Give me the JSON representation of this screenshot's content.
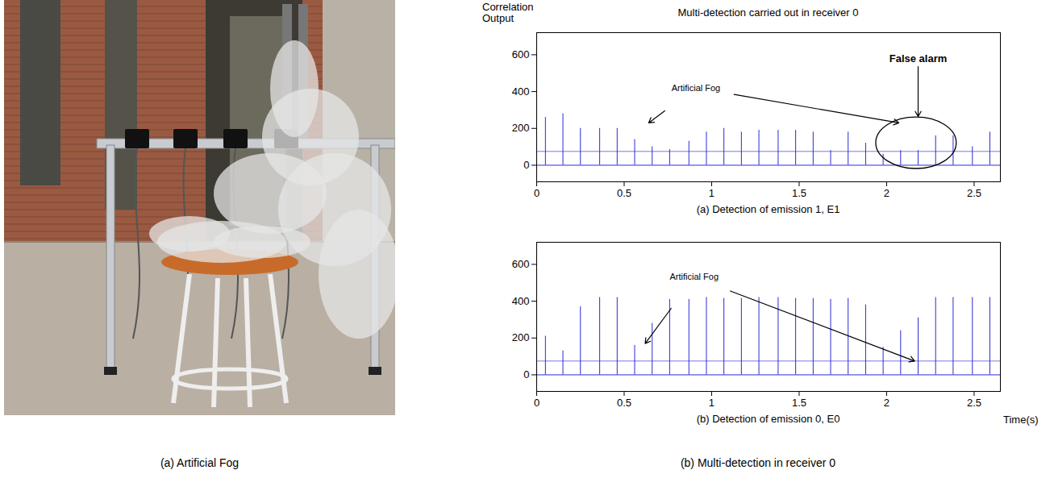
{
  "photo": {
    "caption": "(a) Artificial Fog"
  },
  "caption": "(b) Multi-detection in receiver 0",
  "chart_data": [
    {
      "type": "stem",
      "title": "Multi-detection carried out in receiver 0",
      "y_label": "Correlation Output",
      "x_label": "(a) Detection of emission 1, E1",
      "x": [
        0.05,
        0.15,
        0.25,
        0.36,
        0.46,
        0.56,
        0.66,
        0.76,
        0.87,
        0.97,
        1.07,
        1.17,
        1.27,
        1.38,
        1.48,
        1.58,
        1.68,
        1.78,
        1.88,
        1.98,
        2.08,
        2.18,
        2.28,
        2.38,
        2.49,
        2.59
      ],
      "values": [
        260,
        280,
        200,
        200,
        200,
        140,
        100,
        85,
        130,
        180,
        200,
        180,
        190,
        190,
        190,
        180,
        80,
        180,
        120,
        60,
        80,
        80,
        160,
        160,
        100,
        180
      ],
      "color": "#2b2bd6",
      "baseline": 0,
      "threshold": 75,
      "xlim": [
        0,
        2.65
      ],
      "xticks": [
        0,
        0.5,
        1,
        1.5,
        2,
        2.5
      ],
      "ylim": [
        -90,
        720
      ],
      "yticks": [
        0,
        200,
        400,
        600
      ],
      "annotations": [
        {
          "text": "Artificial Fog",
          "x": 0.91,
          "y": 420,
          "arrows_to": [
            [
              0.64,
              230
            ],
            [
              2.07,
              230
            ]
          ]
        },
        {
          "text": "False alarm",
          "x": 2.18,
          "y": 580,
          "bold": true,
          "arrows_to": [
            [
              2.18,
              265
            ]
          ],
          "ellipse": {
            "x": 2.17,
            "y": 120,
            "rx": 0.23,
            "ry": 140
          }
        }
      ]
    },
    {
      "type": "stem",
      "x_label": "(b) Detection of emission 0, E0",
      "x_axis_title": "Time(s)",
      "x": [
        0.05,
        0.15,
        0.25,
        0.36,
        0.46,
        0.56,
        0.66,
        0.76,
        0.87,
        0.97,
        1.07,
        1.17,
        1.27,
        1.38,
        1.48,
        1.58,
        1.68,
        1.78,
        1.88,
        1.98,
        2.08,
        2.18,
        2.28,
        2.38,
        2.49,
        2.59
      ],
      "values": [
        210,
        130,
        370,
        420,
        420,
        160,
        280,
        410,
        410,
        420,
        415,
        415,
        420,
        420,
        415,
        415,
        410,
        415,
        380,
        150,
        240,
        310,
        420,
        420,
        420,
        420
      ],
      "color": "#2b2bd6",
      "baseline": 0,
      "threshold": 75,
      "xlim": [
        0,
        2.65
      ],
      "xticks": [
        0,
        0.5,
        1,
        1.5,
        2,
        2.5
      ],
      "ylim": [
        -90,
        720
      ],
      "yticks": [
        0,
        200,
        400,
        600
      ],
      "annotations": [
        {
          "text": "Artificial Fog",
          "x": 0.9,
          "y": 530,
          "arrows_to": [
            [
              0.62,
              170
            ],
            [
              2.16,
              75
            ]
          ]
        }
      ]
    }
  ]
}
